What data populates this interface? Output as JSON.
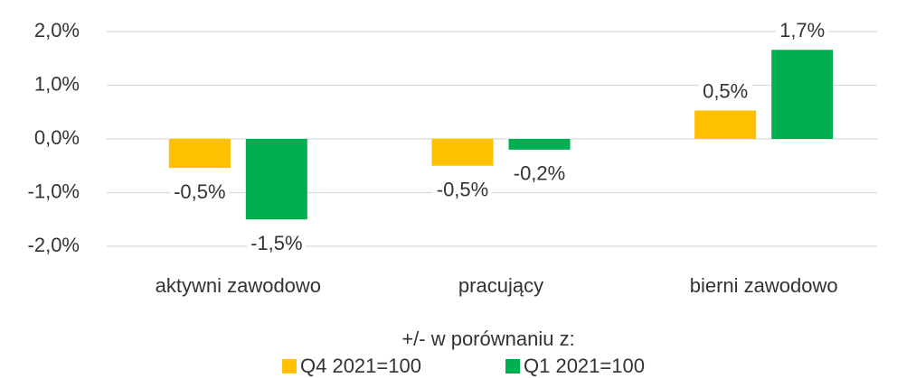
{
  "chart_data": {
    "type": "bar",
    "categories": [
      "aktywni zawodowo",
      "pracujący",
      "bierni zawodowo"
    ],
    "series": [
      {
        "name": "Q4 2021=100",
        "color": "#FFC000",
        "values": [
          -0.54,
          -0.5,
          0.53
        ],
        "value_labels": [
          "-0,5%",
          "-0,5%",
          "0,5%"
        ]
      },
      {
        "name": "Q1 2021=100",
        "color": "#00B050",
        "values": [
          -1.5,
          -0.2,
          1.66
        ],
        "value_labels": [
          "-1,5%",
          "-0,2%",
          "1,7%"
        ]
      }
    ],
    "ylim": [
      -2,
      2
    ],
    "yticks": [
      {
        "value": -2,
        "label": "-2,0%"
      },
      {
        "value": -1,
        "label": "-1,0%"
      },
      {
        "value": 0,
        "label": "0,0%"
      },
      {
        "value": 1,
        "label": "1,0%"
      },
      {
        "value": 2,
        "label": "2,0%"
      }
    ],
    "grid": true,
    "legend_title": "+/- w porównaniu z:",
    "legend": "bottom"
  }
}
